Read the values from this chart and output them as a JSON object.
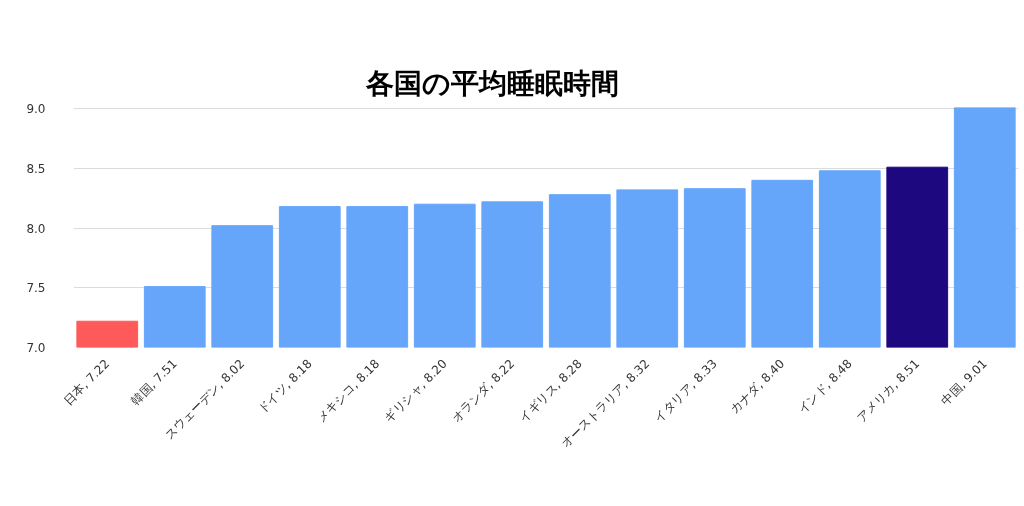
{
  "chart_data": {
    "type": "bar",
    "title": "各国の平均睡眠時間",
    "categories": [
      "日本, 7.22",
      "韓国, 7.51",
      "スウェーデン, 8.02",
      "ドイツ, 8.18",
      "メキシコ, 8.18",
      "ギリシャ, 8.20",
      "オランダ, 8.22",
      "イギリス, 8.28",
      "オーストラリア, 8.32",
      "イタリア, 8.33",
      "カナダ, 8.40",
      "インド, 8.48",
      "アメリカ, 8.51",
      "中国, 9.01"
    ],
    "values": [
      7.22,
      7.51,
      8.02,
      8.18,
      8.18,
      8.2,
      8.22,
      8.28,
      8.32,
      8.33,
      8.4,
      8.48,
      8.51,
      9.01
    ],
    "colors": [
      "#ff5a5a",
      "#65a6fa",
      "#65a6fa",
      "#65a6fa",
      "#65a6fa",
      "#65a6fa",
      "#65a6fa",
      "#65a6fa",
      "#65a6fa",
      "#65a6fa",
      "#65a6fa",
      "#65a6fa",
      "#1d0880",
      "#65a6fa"
    ],
    "ylim": [
      7.0,
      9.01
    ],
    "yticks": [
      {
        "value": 7.0,
        "label": "7.0"
      },
      {
        "value": 7.5,
        "label": "7.5"
      },
      {
        "value": 8.0,
        "label": "8.0"
      },
      {
        "value": 8.5,
        "label": "8.5"
      },
      {
        "value": 9.0,
        "label": "9.0"
      }
    ],
    "grid": "y"
  }
}
